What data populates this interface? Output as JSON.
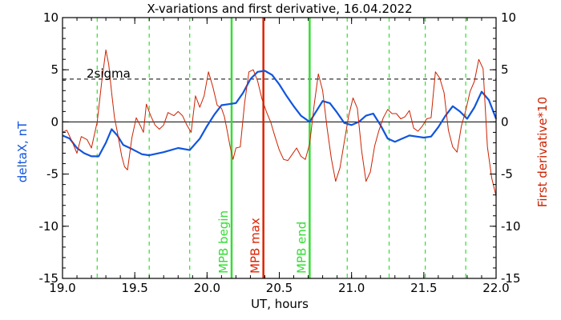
{
  "chart_data": {
    "type": "line",
    "title": "X-variations and first derivative, 16.04.2022",
    "xlabel": "UT, hours",
    "ylabel_left": "deltaX, nT",
    "ylabel_right": "First derivative*10",
    "xlim": [
      19.0,
      22.0
    ],
    "ylim": [
      -15,
      10
    ],
    "x_ticks": [
      19.0,
      19.5,
      20.0,
      20.5,
      21.0,
      21.5,
      22.0
    ],
    "x_tick_labels": [
      "19.0",
      "19.5",
      "20.0",
      "20.5",
      "21.0",
      "21.5",
      "22.0"
    ],
    "y_ticks": [
      10,
      5,
      0,
      -5,
      -10,
      -15
    ],
    "y_tick_labels": [
      "10",
      "5",
      "0",
      "-5",
      "-10",
      "-15"
    ],
    "sigma": {
      "label": "2sigma",
      "value": 4.1
    },
    "zero_line": 0,
    "dashed_verticals": [
      19.24,
      19.6,
      19.88,
      20.17,
      20.97,
      21.26,
      21.51,
      21.79
    ],
    "mpb_lines": [
      {
        "label": "MPB begin",
        "x": 20.17,
        "color": "#33dd33"
      },
      {
        "label": "MPB max",
        "x": 20.39,
        "color": "#dd2200"
      },
      {
        "label": "MPB end",
        "x": 20.71,
        "color": "#33dd33"
      }
    ],
    "colors": {
      "deltaX": "#1155dd",
      "derivative": "#cc2200",
      "grid": "#33dd33",
      "axis": "#000000"
    },
    "series": [
      {
        "name": "deltaX, nT",
        "axis": "left",
        "color": "#1155dd",
        "x": [
          19.0,
          19.05,
          19.1,
          19.15,
          19.2,
          19.25,
          19.3,
          19.34,
          19.38,
          19.42,
          19.48,
          19.55,
          19.6,
          19.7,
          19.8,
          19.88,
          19.95,
          20.0,
          20.05,
          20.1,
          20.15,
          20.2,
          20.25,
          20.3,
          20.35,
          20.4,
          20.45,
          20.5,
          20.55,
          20.6,
          20.65,
          20.71,
          20.75,
          20.8,
          20.85,
          20.9,
          20.95,
          21.0,
          21.05,
          21.1,
          21.15,
          21.2,
          21.25,
          21.3,
          21.35,
          21.4,
          21.45,
          21.5,
          21.55,
          21.6,
          21.65,
          21.7,
          21.75,
          21.8,
          21.85,
          21.9,
          21.95,
          22.0
        ],
        "y": [
          -1.3,
          -1.6,
          -2.5,
          -3.0,
          -3.3,
          -3.3,
          -2.0,
          -0.7,
          -1.3,
          -2.2,
          -2.6,
          -3.1,
          -3.2,
          -2.9,
          -2.5,
          -2.7,
          -1.6,
          -0.4,
          0.7,
          1.6,
          1.7,
          1.8,
          2.8,
          4.1,
          4.8,
          4.9,
          4.5,
          3.6,
          2.5,
          1.5,
          0.6,
          0.0,
          0.9,
          2.0,
          1.8,
          0.9,
          -0.1,
          -0.3,
          0.0,
          0.6,
          0.8,
          -0.3,
          -1.6,
          -1.9,
          -1.6,
          -1.3,
          -1.4,
          -1.5,
          -1.4,
          -0.5,
          0.6,
          1.5,
          1.0,
          0.3,
          1.4,
          2.9,
          2.1,
          0.3
        ]
      },
      {
        "name": "First derivative*10",
        "axis": "right",
        "color": "#cc2200",
        "x": [
          19.0,
          19.03,
          19.07,
          19.1,
          19.13,
          19.17,
          19.2,
          19.24,
          19.27,
          19.3,
          19.32,
          19.34,
          19.36,
          19.38,
          19.41,
          19.43,
          19.45,
          19.48,
          19.51,
          19.54,
          19.56,
          19.58,
          19.61,
          19.64,
          19.67,
          19.7,
          19.73,
          19.77,
          19.8,
          19.83,
          19.86,
          19.89,
          19.92,
          19.95,
          19.98,
          20.01,
          20.04,
          20.07,
          20.1,
          20.12,
          20.14,
          20.16,
          20.18,
          20.2,
          20.23,
          20.26,
          20.29,
          20.32,
          20.35,
          20.38,
          20.41,
          20.44,
          20.47,
          20.5,
          20.53,
          20.56,
          20.59,
          20.62,
          20.65,
          20.68,
          20.71,
          20.74,
          20.77,
          20.8,
          20.83,
          20.86,
          20.89,
          20.92,
          20.95,
          20.98,
          21.01,
          21.04,
          21.07,
          21.1,
          21.13,
          21.16,
          21.19,
          21.22,
          21.25,
          21.28,
          21.31,
          21.34,
          21.37,
          21.4,
          21.43,
          21.46,
          21.49,
          21.52,
          21.55,
          21.58,
          21.61,
          21.64,
          21.67,
          21.7,
          21.73,
          21.76,
          21.79,
          21.82,
          21.85,
          21.88,
          21.91,
          21.94,
          21.97,
          22.0
        ],
        "y": [
          -1.0,
          -0.8,
          -2.0,
          -3.0,
          -1.4,
          -1.7,
          -2.5,
          0.0,
          3.7,
          6.9,
          5.5,
          2.8,
          0.4,
          -1.0,
          -3.3,
          -4.3,
          -4.6,
          -1.5,
          0.4,
          -0.4,
          -1.0,
          1.7,
          0.6,
          -0.3,
          -0.7,
          -0.3,
          0.9,
          0.6,
          1.0,
          0.6,
          -0.3,
          -1.0,
          2.5,
          1.4,
          2.5,
          4.8,
          3.4,
          1.6,
          1.3,
          0.5,
          -0.9,
          -2.4,
          -3.6,
          -2.5,
          -2.4,
          1.8,
          4.8,
          5.0,
          3.9,
          2.2,
          1.0,
          0.0,
          -1.4,
          -2.7,
          -3.6,
          -3.7,
          -3.1,
          -2.5,
          -3.3,
          -3.6,
          -2.1,
          1.5,
          4.6,
          3.0,
          -0.5,
          -3.5,
          -5.7,
          -4.4,
          -1.9,
          0.6,
          2.3,
          1.3,
          -2.8,
          -5.7,
          -4.8,
          -2.3,
          -0.8,
          0.4,
          1.2,
          0.8,
          0.8,
          0.3,
          0.5,
          1.1,
          -0.6,
          -0.9,
          -0.4,
          0.3,
          0.4,
          4.8,
          4.2,
          2.8,
          -0.8,
          -2.4,
          -2.9,
          -0.4,
          1.1,
          2.9,
          3.9,
          6.0,
          5.1,
          -2.4,
          -5.4,
          -7.1
        ]
      }
    ]
  }
}
